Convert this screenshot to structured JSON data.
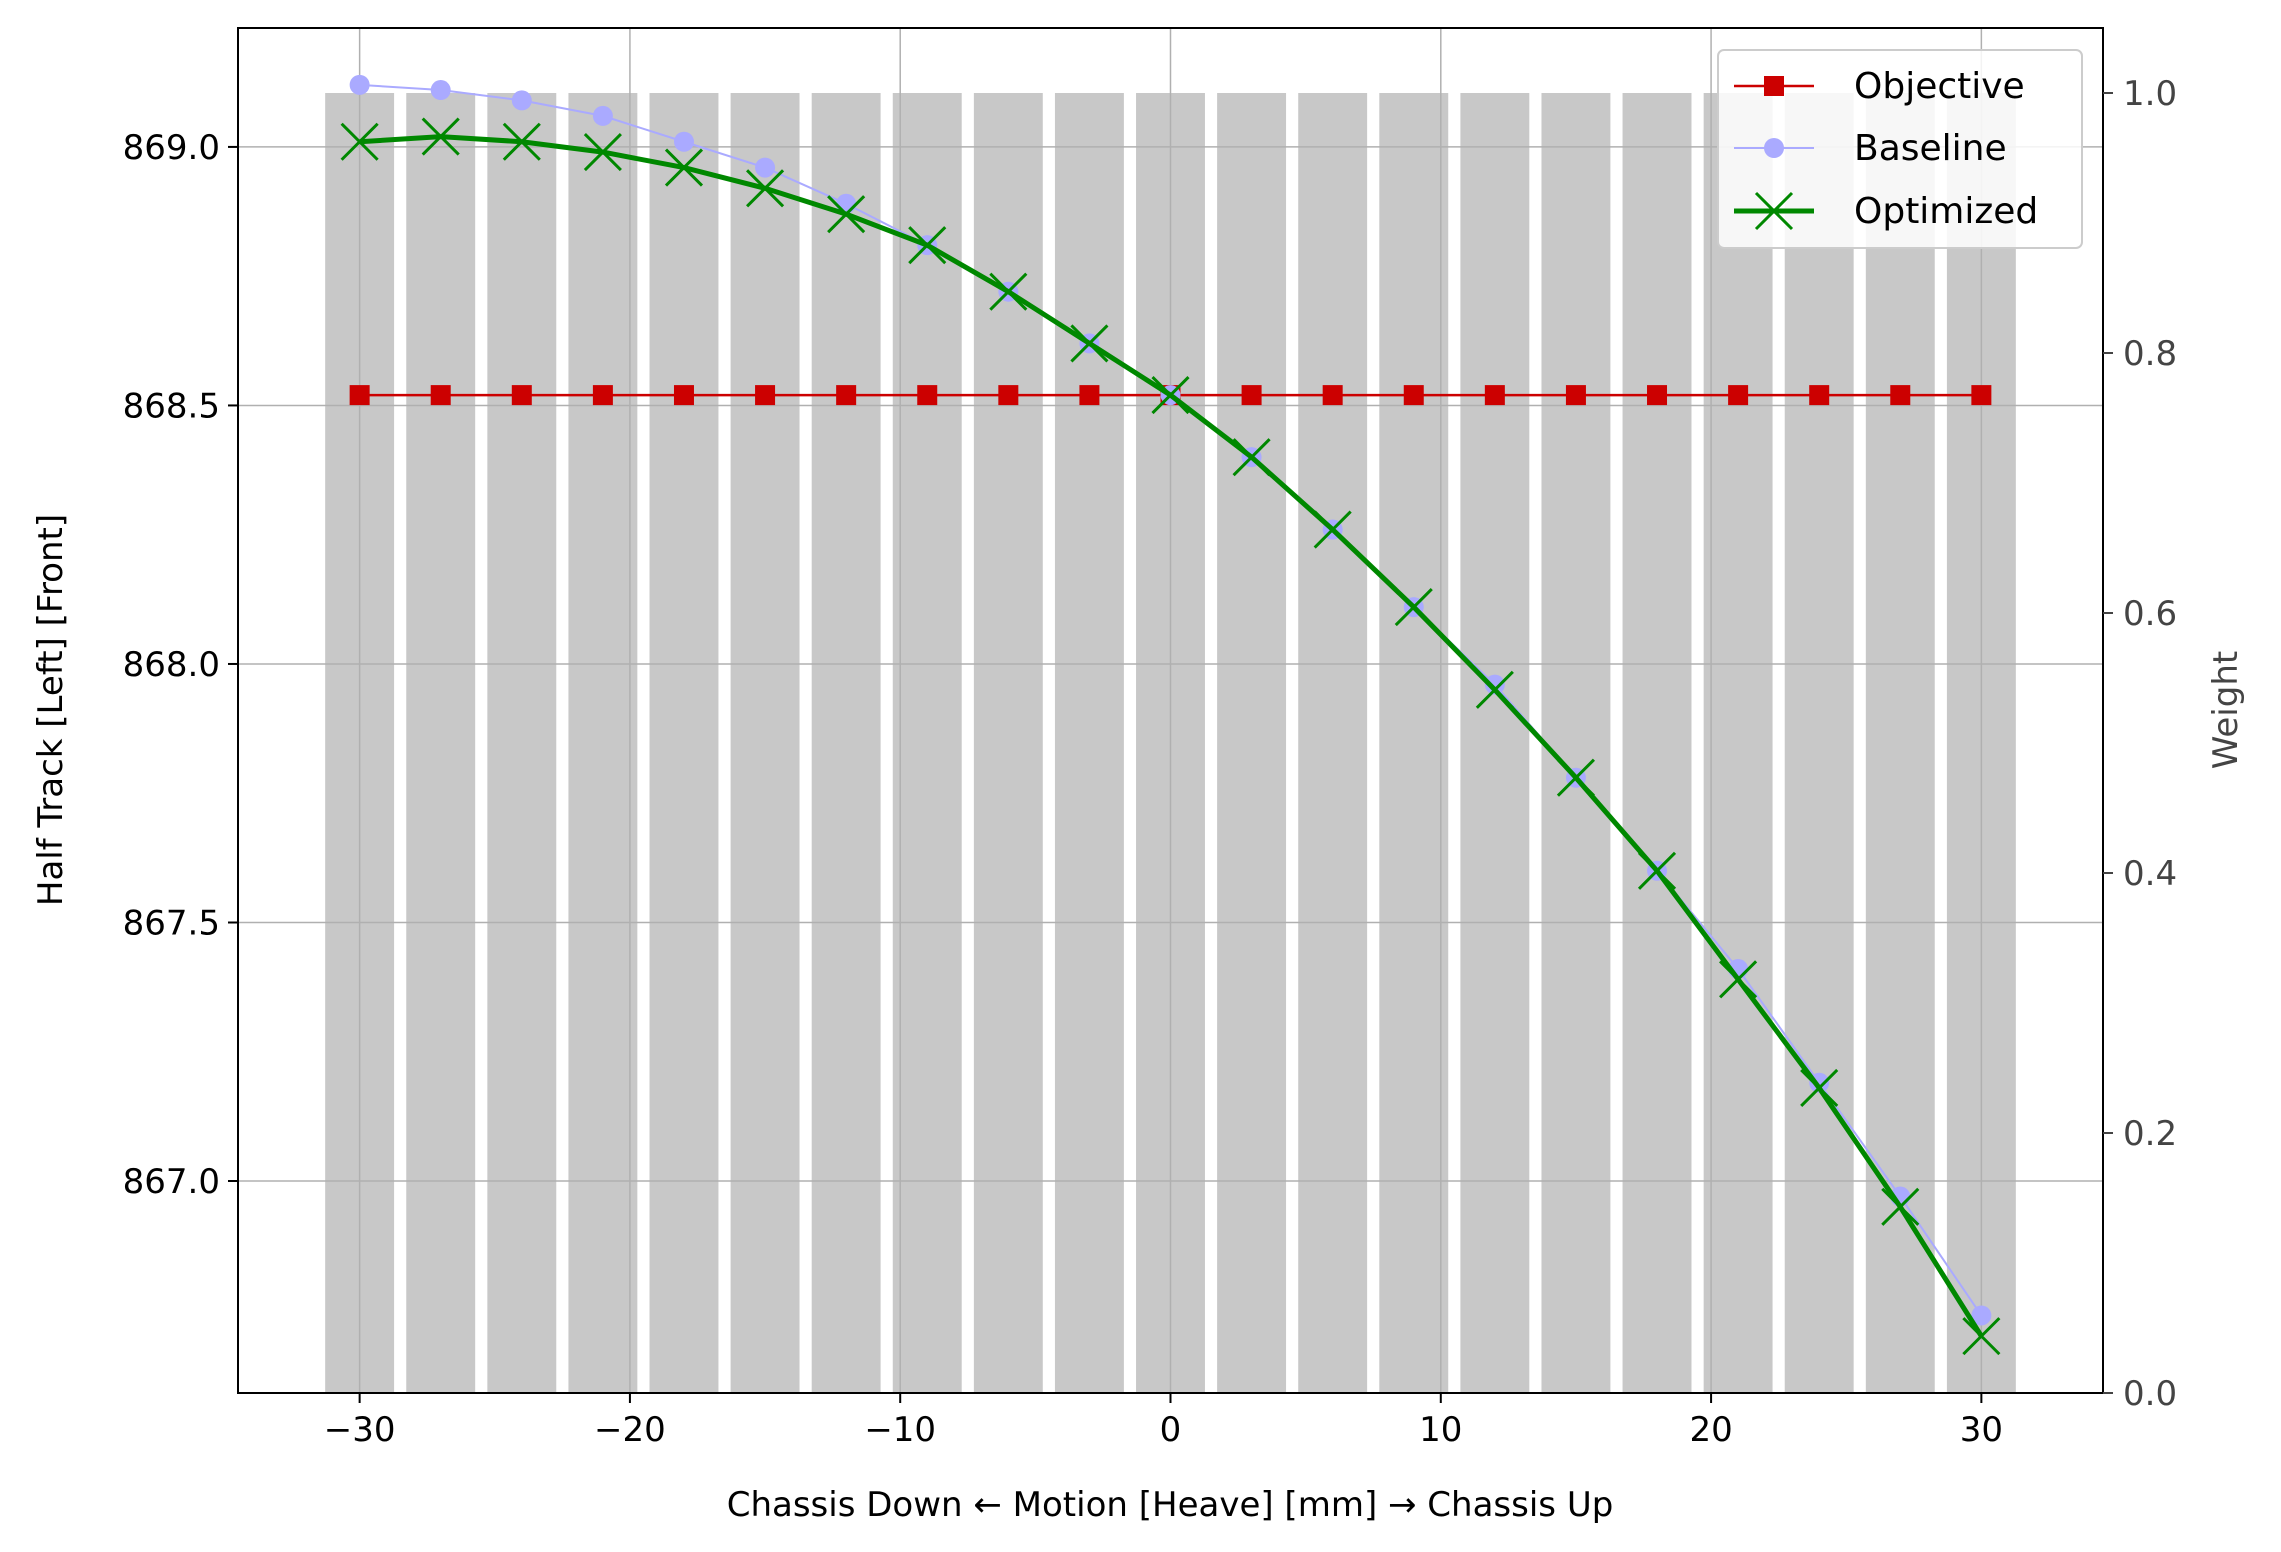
{
  "chart_data": {
    "type": "line",
    "xlabel": "Chassis Down ← Motion [Heave] [mm] → Chassis Up",
    "ylabel": "Half Track [Left] [Front]",
    "y2label": "Weight",
    "xlim": [
      -34.5,
      34.5
    ],
    "ylim": [
      866.59,
      869.23
    ],
    "y2lim": [
      0.0,
      1.05
    ],
    "x_ticks": [
      -30,
      -20,
      -10,
      0,
      10,
      20,
      30
    ],
    "y_ticks": [
      867.0,
      867.5,
      868.0,
      868.5,
      869.0
    ],
    "y2_ticks": [
      0.0,
      0.2,
      0.4,
      0.6,
      0.8,
      1.0
    ],
    "x_tick_labels": [
      "−30",
      "−20",
      "−10",
      "0",
      "10",
      "20",
      "30"
    ],
    "y_tick_labels": [
      "867.0",
      "867.5",
      "868.0",
      "868.5",
      "869.0"
    ],
    "y2_tick_labels": [
      "0.0",
      "0.2",
      "0.4",
      "0.6",
      "0.8",
      "1.0"
    ],
    "grid": true,
    "legend_position": "top-right",
    "x": [
      -30,
      -27,
      -24,
      -21,
      -18,
      -15,
      -12,
      -9,
      -6,
      -3,
      0,
      3,
      6,
      9,
      12,
      15,
      18,
      21,
      24,
      27,
      30
    ],
    "weights": {
      "color": "#c8c8c8",
      "bar_width": 2.55,
      "values": [
        1,
        1,
        1,
        1,
        1,
        1,
        1,
        1,
        1,
        1,
        1,
        1,
        1,
        1,
        1,
        1,
        1,
        1,
        1,
        1,
        1
      ]
    },
    "series": [
      {
        "name": "Objective",
        "color": "#cc0000",
        "marker": "square",
        "values": [
          868.52,
          868.52,
          868.52,
          868.52,
          868.52,
          868.52,
          868.52,
          868.52,
          868.52,
          868.52,
          868.52,
          868.52,
          868.52,
          868.52,
          868.52,
          868.52,
          868.52,
          868.52,
          868.52,
          868.52,
          868.52
        ]
      },
      {
        "name": "Baseline",
        "color": "#aaaaff",
        "marker": "circle",
        "values": [
          869.12,
          869.11,
          869.09,
          869.06,
          869.01,
          868.96,
          868.89,
          868.81,
          868.72,
          868.62,
          868.52,
          868.4,
          868.26,
          868.11,
          867.96,
          867.78,
          867.6,
          867.41,
          867.19,
          866.97,
          866.74
        ]
      },
      {
        "name": "Optimized",
        "color": "#008800",
        "marker": "x",
        "values": [
          869.01,
          869.02,
          869.01,
          868.99,
          868.96,
          868.92,
          868.87,
          868.81,
          868.72,
          868.62,
          868.52,
          868.4,
          868.26,
          868.11,
          867.95,
          867.78,
          867.6,
          867.39,
          867.18,
          866.95,
          866.7
        ]
      }
    ]
  }
}
